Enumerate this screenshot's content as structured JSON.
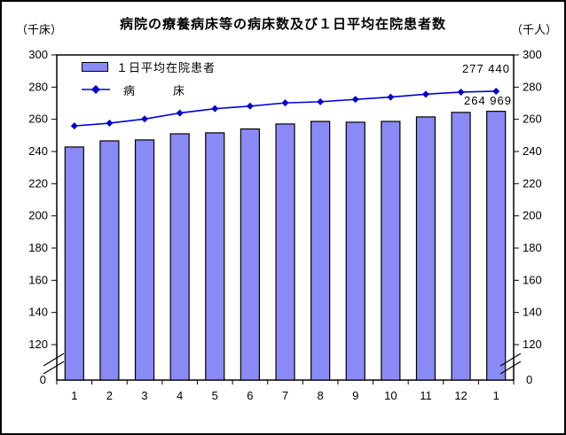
{
  "chart": {
    "title": "病院の療養病床等の病床数及び１日平均在院患者数",
    "left_unit": "（千床）",
    "right_unit": "（千人）",
    "legend": {
      "bar_label": "１日平均在院患者",
      "line_label": "病　　　床"
    }
  },
  "chart_data": {
    "type": "bar",
    "subtype": "bar+line combo, dual value annotations, broken y-axis",
    "title": "病院の療養病床等の病床数及び１日平均在院患者数",
    "categories": [
      "1",
      "2",
      "3",
      "4",
      "5",
      "6",
      "7",
      "8",
      "9",
      "10",
      "11",
      "12",
      "1"
    ],
    "series": [
      {
        "name": "１日平均在院患者",
        "type": "bar",
        "unit": "千人",
        "values": [
          242.8,
          246.6,
          247.2,
          251.0,
          251.6,
          254.0,
          257.1,
          258.7,
          258.2,
          258.7,
          261.5,
          264.3,
          264.969
        ]
      },
      {
        "name": "病床",
        "type": "line",
        "unit": "千床",
        "values": [
          255.9,
          257.6,
          260.2,
          263.9,
          266.6,
          268.2,
          270.2,
          270.9,
          272.4,
          273.8,
          275.6,
          276.9,
          277.44
        ]
      }
    ],
    "y_ticks": [
      300,
      280,
      260,
      240,
      220,
      200,
      180,
      160,
      140,
      120
    ],
    "zero_label": "0",
    "axis_break": true,
    "ylim_display": [
      120,
      300
    ],
    "grid": false,
    "legend_position": "top-left inside plot",
    "annotations": {
      "line_last": "277 440",
      "bar_last": "264 969"
    },
    "colors": {
      "bar_fill": "#8a8af6",
      "bar_stroke": "#000000",
      "line": "#0000e0",
      "marker": "#0000c0",
      "axis": "#000000"
    }
  }
}
